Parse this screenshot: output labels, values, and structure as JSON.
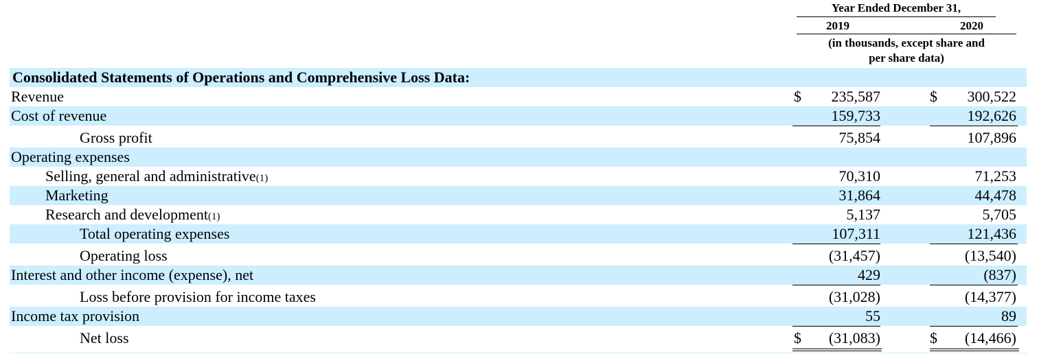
{
  "header": {
    "period": "Year Ended December 31,",
    "col1_year": "2019",
    "col2_year": "2020",
    "units_line1": "(in thousands, except share and",
    "units_line2": "per share data)"
  },
  "section_title": "Consolidated Statements of Operations and Comprehensive Loss Data:",
  "currency_symbol": "$",
  "rows": [
    {
      "label": "Revenue",
      "v2019": "235,587",
      "v2020": "300,522"
    },
    {
      "label": "Cost of revenue",
      "v2019": "159,733",
      "v2020": "192,626"
    },
    {
      "label": "Gross profit",
      "v2019": "75,854",
      "v2020": "107,896"
    },
    {
      "label": "Operating expenses"
    },
    {
      "label": "Selling, general and administrative",
      "note": "(1)",
      "v2019": "70,310",
      "v2020": "71,253"
    },
    {
      "label": "Marketing",
      "v2019": "31,864",
      "v2020": "44,478"
    },
    {
      "label": "Research and development",
      "note": "(1)",
      "v2019": "5,137",
      "v2020": "5,705"
    },
    {
      "label": "Total operating expenses",
      "v2019": "107,311",
      "v2020": "121,436"
    },
    {
      "label": "Operating loss",
      "v2019": "(31,457)",
      "v2020": "(13,540)"
    },
    {
      "label": "Interest and other income (expense), net",
      "v2019": "429",
      "v2020": "(837)"
    },
    {
      "label": "Loss before provision for income taxes",
      "v2019": "(31,028)",
      "v2020": "(14,377)"
    },
    {
      "label": "Income tax provision",
      "v2019": "55",
      "v2020": "89"
    },
    {
      "label": "Net loss",
      "v2019": "(31,083)",
      "v2020": "(14,466)"
    }
  ],
  "colors": {
    "row_shade": "#cceeff"
  }
}
